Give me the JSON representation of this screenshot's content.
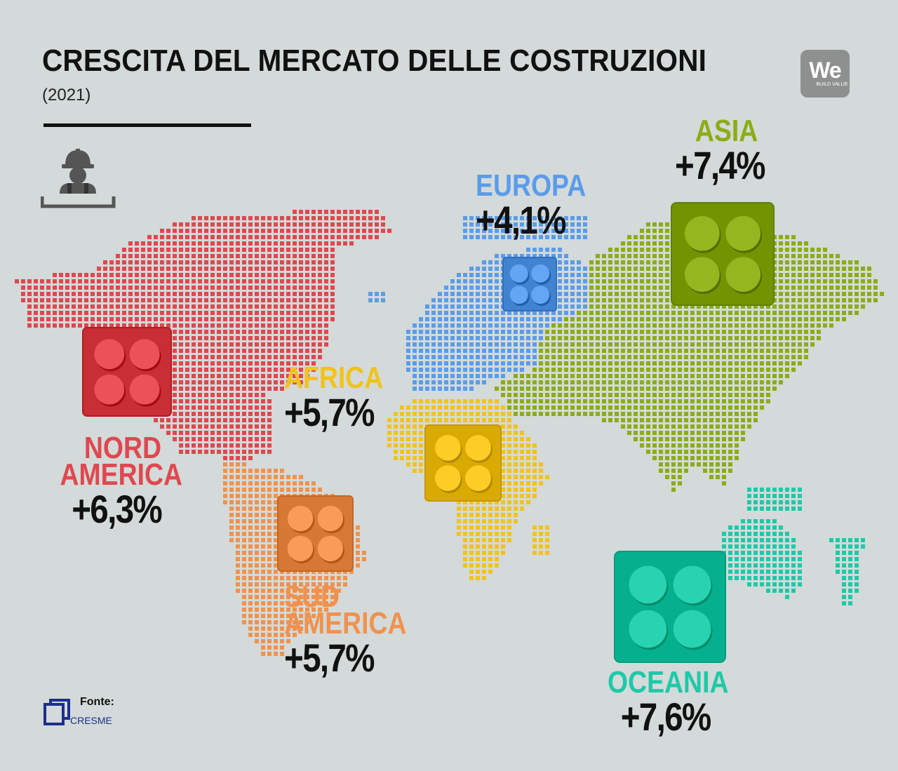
{
  "header": {
    "title": "CRESCITA DEL MERCATO DELLE COSTRUZIONI",
    "subtitle": "(2021)"
  },
  "logo": {
    "text": "We",
    "subtext": "BUILD VALUE"
  },
  "regions": [
    {
      "id": "nord-america",
      "name_lines": [
        "NORD",
        "AMERICA"
      ],
      "value": "+6,3%",
      "color": "#e0474f"
    },
    {
      "id": "sud-america",
      "name_lines": [
        "SUD",
        "AMERICA"
      ],
      "value": "+5,7%",
      "color": "#f0924e"
    },
    {
      "id": "europa",
      "name_lines": [
        "EUROPA"
      ],
      "value": "+4,1%",
      "color": "#5b9cea"
    },
    {
      "id": "africa",
      "name_lines": [
        "AFRICA"
      ],
      "value": "+5,7%",
      "color": "#f2c31a"
    },
    {
      "id": "asia",
      "name_lines": [
        "ASIA"
      ],
      "value": "+7,4%",
      "color": "#8cac16"
    },
    {
      "id": "oceania",
      "name_lines": [
        "OCEANIA"
      ],
      "value": "+7,6%",
      "color": "#1ec9a8"
    }
  ],
  "source": {
    "label": "Fonte:",
    "name": "CRESME"
  },
  "icons": [
    "construction-worker-icon",
    "lego-brick-icon",
    "cresme-logo-icon"
  ]
}
